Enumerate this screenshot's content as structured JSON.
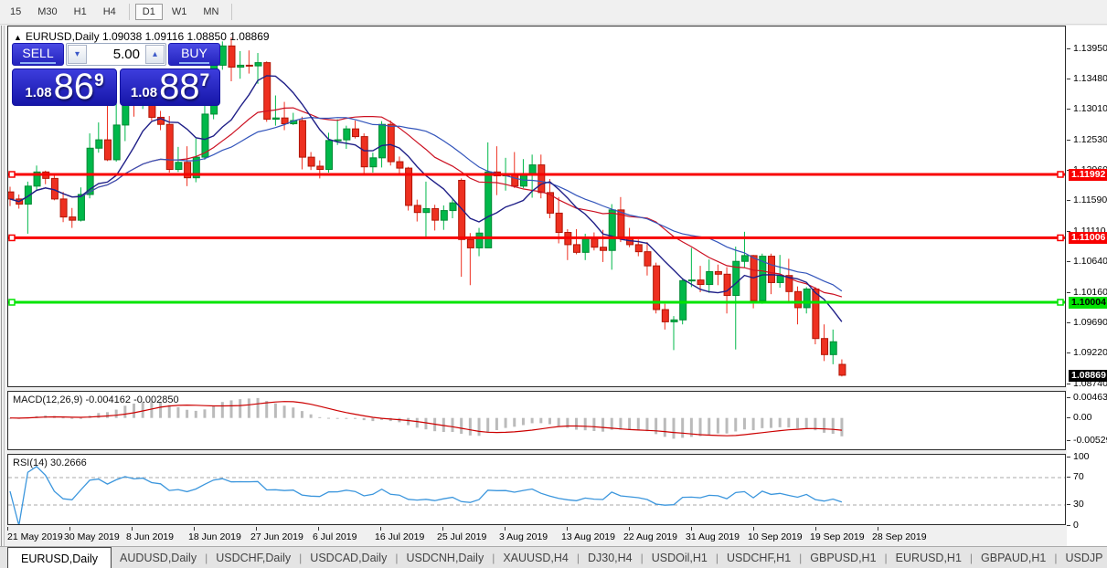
{
  "toolbar": {
    "timeframes": [
      "15",
      "M30",
      "H1",
      "H4",
      "D1",
      "W1",
      "MN"
    ],
    "active": "D1"
  },
  "chart": {
    "symbol_title": "EURUSD,Daily",
    "ohlc": "1.09038 1.09116 1.08850 1.08869",
    "collapse_icon": "▲"
  },
  "trade": {
    "sell_label": "SELL",
    "buy_label": "BUY",
    "volume": "5.00",
    "spin_down_icon": "▾",
    "spin_up_icon": "▴",
    "bid_prefix": "1.08",
    "bid_main": "86",
    "bid_pip": "9",
    "ask_prefix": "1.08",
    "ask_main": "88",
    "ask_pip": "7"
  },
  "indicators": {
    "macd_label": "MACD(12,26,9) -0.004162 -0.002850",
    "rsi_label": "RSI(14) 30.2666"
  },
  "axes": {
    "price_ticks": [
      "1.13950",
      "1.13480",
      "1.13010",
      "1.12530",
      "1.12060",
      "1.11590",
      "1.11110",
      "1.10640",
      "1.10160",
      "1.09690",
      "1.09220",
      "1.08740"
    ],
    "macd_ticks": [
      {
        "label": "0.00463",
        "value": 0.00463
      },
      {
        "label": "0.00",
        "value": 0
      },
      {
        "label": "-0.005299",
        "value": -0.005299
      }
    ],
    "rsi_ticks": [
      {
        "label": "100",
        "value": 100
      },
      {
        "label": "70",
        "value": 70
      },
      {
        "label": "30",
        "value": 30
      },
      {
        "label": "0",
        "value": 0
      }
    ],
    "dates": [
      "21 May 2019",
      "30 May 2019",
      "8 Jun 2019",
      "18 Jun 2019",
      "27 Jun 2019",
      "6 Jul 2019",
      "16 Jul 2019",
      "25 Jul 2019",
      "3 Aug 2019",
      "13 Aug 2019",
      "22 Aug 2019",
      "31 Aug 2019",
      "10 Sep 2019",
      "19 Sep 2019",
      "28 Sep 2019"
    ]
  },
  "levels": [
    {
      "label": "1.11992",
      "price": 1.11992,
      "bg": "#f80000",
      "fg": "#ffffff"
    },
    {
      "label": "1.11006",
      "price": 1.11006,
      "bg": "#f80000",
      "fg": "#ffffff"
    },
    {
      "label": "1.10004",
      "price": 1.10004,
      "bg": "#00e400",
      "fg": "#000000"
    }
  ],
  "current_price": {
    "label": "1.08869",
    "price": 1.08869,
    "bg": "#000000",
    "fg": "#ffffff"
  },
  "tabs": [
    "EURUSD,Daily",
    "AUDUSD,Daily",
    "USDCHF,Daily",
    "USDCAD,Daily",
    "USDCNH,Daily",
    "XAUUSD,H4",
    "DJ30,H4",
    "USDOil,H1",
    "USDCHF,H1",
    "GBPUSD,H1",
    "EURUSD,H1",
    "GBPAUD,H1",
    "USDJP"
  ],
  "tab_scroll": {
    "left_icon": "◂",
    "right_icon": "▸"
  },
  "colors": {
    "bull": "#00b84a",
    "bull_stroke": "#008a33",
    "bear": "#ee3020",
    "bear_stroke": "#b01505",
    "ma_fast": "#202088",
    "ma_mid": "#3355bb",
    "ma_slow": "#cc1122",
    "level_red": "#f80000",
    "level_green": "#00e400",
    "macd_hist": "#bbbbbb",
    "macd_signal": "#cc0000",
    "rsi_line": "#3b96dd",
    "rsi_level": "#aaaaaa"
  },
  "chart_data": {
    "type": "candlestick",
    "symbol": "EURUSD",
    "period": "Daily",
    "moving_averages": {
      "fast_period": 8,
      "mid_period": 26,
      "slow_period": 20
    },
    "macd": {
      "fast": 12,
      "slow": 26,
      "signal": 9,
      "current_main": -0.004162,
      "current_signal": -0.00285,
      "scale_max": 0.00463,
      "scale_min": -0.005299
    },
    "rsi": {
      "period": 14,
      "current": 30.2666,
      "levels": [
        70,
        30
      ]
    },
    "ylim": [
      1.087,
      1.143
    ],
    "candles_ohlc": [
      [
        1.1172,
        1.118,
        1.115,
        1.1161
      ],
      [
        1.1161,
        1.1168,
        1.1146,
        1.1153
      ],
      [
        1.1153,
        1.1188,
        1.1107,
        1.1181
      ],
      [
        1.1181,
        1.1213,
        1.1174,
        1.1203
      ],
      [
        1.1203,
        1.1205,
        1.1184,
        1.1193
      ],
      [
        1.1193,
        1.12,
        1.1159,
        1.1161
      ],
      [
        1.1161,
        1.1172,
        1.1125,
        1.1133
      ],
      [
        1.1133,
        1.1147,
        1.1116,
        1.1128
      ],
      [
        1.1128,
        1.1179,
        1.1126,
        1.1168
      ],
      [
        1.1168,
        1.1263,
        1.1162,
        1.124
      ],
      [
        1.124,
        1.128,
        1.1233,
        1.1253
      ],
      [
        1.1253,
        1.1307,
        1.122,
        1.1222
      ],
      [
        1.1222,
        1.1309,
        1.1219,
        1.1276
      ],
      [
        1.1276,
        1.1348,
        1.1251,
        1.1333
      ],
      [
        1.1316,
        1.1332,
        1.1289,
        1.1313
      ],
      [
        1.1313,
        1.1337,
        1.1301,
        1.1327
      ],
      [
        1.1327,
        1.1344,
        1.1283,
        1.1288
      ],
      [
        1.1288,
        1.1298,
        1.1268,
        1.1277
      ],
      [
        1.1277,
        1.129,
        1.1202,
        1.1207
      ],
      [
        1.1207,
        1.1242,
        1.1203,
        1.1218
      ],
      [
        1.1218,
        1.1243,
        1.1181,
        1.1194
      ],
      [
        1.1194,
        1.1255,
        1.1187,
        1.1226
      ],
      [
        1.1226,
        1.1317,
        1.1222,
        1.1293
      ],
      [
        1.1293,
        1.1378,
        1.1285,
        1.1369
      ],
      [
        1.1369,
        1.1406,
        1.1362,
        1.1399
      ],
      [
        1.1399,
        1.1412,
        1.1344,
        1.1366
      ],
      [
        1.1366,
        1.1391,
        1.1348,
        1.1369
      ],
      [
        1.1369,
        1.1392,
        1.1356,
        1.1368
      ],
      [
        1.1368,
        1.1388,
        1.134,
        1.1373
      ],
      [
        1.1373,
        1.1375,
        1.1281,
        1.1285
      ],
      [
        1.1285,
        1.1322,
        1.1275,
        1.1287
      ],
      [
        1.1287,
        1.1312,
        1.1268,
        1.1278
      ],
      [
        1.1278,
        1.1295,
        1.1276,
        1.1283
      ],
      [
        1.1283,
        1.1289,
        1.1207,
        1.1226
      ],
      [
        1.1226,
        1.1234,
        1.1206,
        1.1212
      ],
      [
        1.1212,
        1.1221,
        1.1193,
        1.1207
      ],
      [
        1.1207,
        1.1264,
        1.1202,
        1.1252
      ],
      [
        1.1252,
        1.1285,
        1.1245,
        1.1253
      ],
      [
        1.1253,
        1.1275,
        1.1239,
        1.127
      ],
      [
        1.127,
        1.1283,
        1.1255,
        1.1258
      ],
      [
        1.1258,
        1.1263,
        1.1201,
        1.1211
      ],
      [
        1.1211,
        1.1233,
        1.1202,
        1.1225
      ],
      [
        1.1225,
        1.1282,
        1.121,
        1.1277
      ],
      [
        1.1277,
        1.1283,
        1.1213,
        1.1219
      ],
      [
        1.1219,
        1.1227,
        1.1198,
        1.1209
      ],
      [
        1.1209,
        1.1211,
        1.1143,
        1.1151
      ],
      [
        1.1151,
        1.116,
        1.1126,
        1.114
      ],
      [
        1.114,
        1.1188,
        1.1101,
        1.1146
      ],
      [
        1.1146,
        1.1152,
        1.1112,
        1.1128
      ],
      [
        1.1128,
        1.1151,
        1.1113,
        1.1143
      ],
      [
        1.1143,
        1.1162,
        1.1131,
        1.1155
      ],
      [
        1.119,
        1.1193,
        1.104,
        1.1098
      ],
      [
        1.1098,
        1.1108,
        1.1027,
        1.1085
      ],
      [
        1.1085,
        1.1116,
        1.1072,
        1.1108
      ],
      [
        1.1085,
        1.1249,
        1.1085,
        1.1203
      ],
      [
        1.1203,
        1.1243,
        1.1167,
        1.1197
      ],
      [
        1.1197,
        1.1225,
        1.1174,
        1.1199
      ],
      [
        1.1199,
        1.1234,
        1.1178,
        1.1181
      ],
      [
        1.1181,
        1.1223,
        1.1178,
        1.1199
      ],
      [
        1.1199,
        1.123,
        1.1163,
        1.1214
      ],
      [
        1.1214,
        1.123,
        1.1162,
        1.1171
      ],
      [
        1.1171,
        1.1192,
        1.1131,
        1.1139
      ],
      [
        1.1139,
        1.1164,
        1.1092,
        1.1109
      ],
      [
        1.1109,
        1.1114,
        1.1066,
        1.109
      ],
      [
        1.109,
        1.1114,
        1.1075,
        1.1078
      ],
      [
        1.1078,
        1.1107,
        1.1066,
        1.1099
      ],
      [
        1.1099,
        1.1109,
        1.1081,
        1.1086
      ],
      [
        1.1086,
        1.1113,
        1.1063,
        1.1081
      ],
      [
        1.1081,
        1.1153,
        1.1051,
        1.1144
      ],
      [
        1.1144,
        1.1164,
        1.1094,
        1.1101
      ],
      [
        1.1101,
        1.1116,
        1.1086,
        1.109
      ],
      [
        1.109,
        1.1098,
        1.1072,
        1.1079
      ],
      [
        1.1079,
        1.1094,
        1.1042,
        1.1057
      ],
      [
        1.1057,
        1.1062,
        1.0983,
        1.0989
      ],
      [
        1.0989,
        1.0998,
        1.0958,
        1.097
      ],
      [
        1.097,
        1.0979,
        1.0926,
        1.0973
      ],
      [
        1.0973,
        1.1038,
        1.0966,
        1.1034
      ],
      [
        1.1034,
        1.1085,
        1.1024,
        1.1035
      ],
      [
        1.1035,
        1.1057,
        1.1016,
        1.1028
      ],
      [
        1.1028,
        1.1067,
        1.1015,
        1.1048
      ],
      [
        1.1048,
        1.1059,
        1.1027,
        1.1044
      ],
      [
        1.1044,
        1.1055,
        1.0983,
        1.1011
      ],
      [
        1.1011,
        1.1087,
        1.0927,
        1.1064
      ],
      [
        1.1064,
        1.111,
        1.1054,
        1.1073
      ],
      [
        1.1073,
        1.1074,
        1.0991,
        1.1003
      ],
      [
        1.1003,
        1.1076,
        1.0998,
        1.1072
      ],
      [
        1.1072,
        1.1076,
        1.1013,
        1.1031
      ],
      [
        1.1031,
        1.1074,
        1.1023,
        1.1042
      ],
      [
        1.1042,
        1.1068,
        1.1,
        1.1017
      ],
      [
        1.1017,
        1.1025,
        1.0966,
        1.0992
      ],
      [
        1.0992,
        1.1024,
        1.0983,
        1.1021
      ],
      [
        1.1021,
        1.1024,
        1.0935,
        1.0944
      ],
      [
        1.0944,
        1.0966,
        1.0909,
        1.0919
      ],
      [
        1.0919,
        1.0958,
        1.0904,
        1.0939
      ],
      [
        1.09038,
        1.09116,
        1.0885,
        1.08869
      ]
    ]
  }
}
